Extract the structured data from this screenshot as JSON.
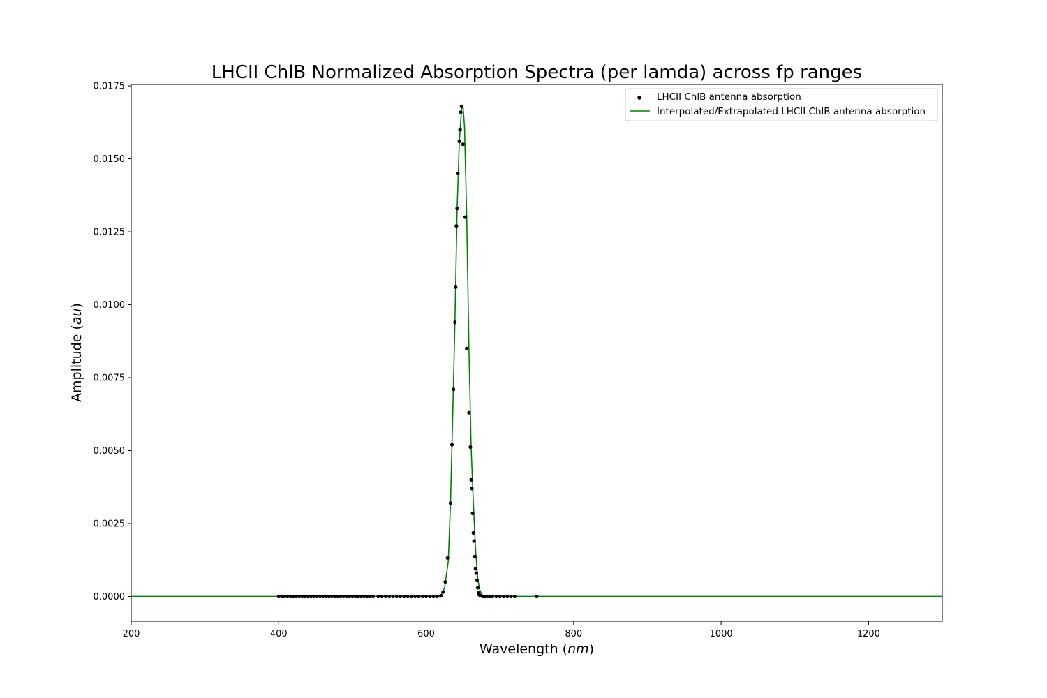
{
  "chart_data": {
    "type": "scatter",
    "title": "LHCII ChlB Normalized Absorption Spectra (per lamda) across fp ranges",
    "xlabel": {
      "text": "Wavelength (",
      "unit": "nm",
      "close": ")"
    },
    "ylabel": {
      "text": "Amplitude (",
      "unit": "au",
      "close": ")"
    },
    "xlim": [
      200,
      1300
    ],
    "ylim": [
      -0.00085,
      0.01755
    ],
    "xticks": [
      200,
      400,
      600,
      800,
      1000,
      1200
    ],
    "xtick_labels": [
      "200",
      "400",
      "600",
      "800",
      "1000",
      "1200"
    ],
    "yticks": [
      0.0,
      0.0025,
      0.005,
      0.0075,
      0.01,
      0.0125,
      0.015,
      0.0175
    ],
    "ytick_labels": [
      "0.0000",
      "0.0025",
      "0.0050",
      "0.0075",
      "0.0100",
      "0.0125",
      "0.0150",
      "0.0175"
    ],
    "grid": false,
    "legend_position": "top-right",
    "series": [
      {
        "name": "LHCII ChlB antenna absorption",
        "kind": "scatter",
        "color": "#000000",
        "x": [
          400,
          404,
          408,
          412,
          416,
          420,
          424,
          428,
          432,
          436,
          440,
          444,
          448,
          452,
          456,
          460,
          464,
          468,
          472,
          476,
          480,
          484,
          488,
          492,
          496,
          500,
          504,
          508,
          512,
          516,
          520,
          524,
          528,
          535,
          540,
          545,
          550,
          555,
          560,
          565,
          570,
          575,
          580,
          585,
          590,
          595,
          600,
          605,
          610,
          615,
          620,
          623,
          626,
          629,
          633,
          635,
          637,
          639,
          640,
          641,
          642,
          643,
          645,
          646,
          647,
          648,
          650,
          653,
          655,
          658,
          660,
          661,
          662,
          663,
          664,
          665,
          666,
          667,
          668,
          669,
          670,
          671,
          672,
          673,
          675,
          677,
          680,
          683,
          686,
          690,
          695,
          700,
          705,
          710,
          715,
          720,
          750
        ],
        "y": [
          0.0,
          0.0,
          0.0,
          0.0,
          0.0,
          0.0,
          0.0,
          0.0,
          0.0,
          0.0,
          0.0,
          0.0,
          0.0,
          0.0,
          0.0,
          0.0,
          0.0,
          0.0,
          0.0,
          0.0,
          0.0,
          0.0,
          0.0,
          0.0,
          0.0,
          0.0,
          0.0,
          0.0,
          0.0,
          0.0,
          0.0,
          0.0,
          0.0,
          0.0,
          0.0,
          0.0,
          0.0,
          0.0,
          0.0,
          0.0,
          0.0,
          0.0,
          0.0,
          0.0,
          0.0,
          0.0,
          0.0,
          0.0,
          0.0,
          0.0,
          2e-05,
          0.00015,
          0.0005,
          0.00132,
          0.0032,
          0.0052,
          0.0071,
          0.0094,
          0.0106,
          0.0127,
          0.0133,
          0.0145,
          0.0156,
          0.016,
          0.0166,
          0.0168,
          0.0155,
          0.013,
          0.0085,
          0.0063,
          0.00512,
          0.004,
          0.0037,
          0.00285,
          0.00218,
          0.0019,
          0.00137,
          0.00095,
          0.0008,
          0.00055,
          0.0003,
          0.00012,
          6e-05,
          3e-05,
          2e-05,
          0.0,
          0.0,
          0.0,
          0.0,
          0.0,
          0.0,
          0.0,
          0.0,
          0.0,
          0.0,
          0.0,
          0.0
        ]
      },
      {
        "name": "Interpolated/Extrapolated LHCII ChlB antenna absorption",
        "kind": "line",
        "color": "#008000",
        "x": [
          200,
          400,
          610,
          620,
          625,
          630,
          633,
          636,
          639,
          642,
          645,
          648,
          650,
          652,
          655,
          658,
          661,
          664,
          667,
          670,
          673,
          676,
          680,
          690,
          1300
        ],
        "y": [
          0.0,
          0.0,
          0.0,
          2e-05,
          0.0003,
          0.0012,
          0.0032,
          0.0062,
          0.0094,
          0.0133,
          0.0156,
          0.0167,
          0.0168,
          0.0161,
          0.013,
          0.0085,
          0.0051,
          0.0032,
          0.0016,
          0.0006,
          0.0002,
          5e-05,
          0.0,
          0.0,
          0.0
        ]
      }
    ]
  }
}
